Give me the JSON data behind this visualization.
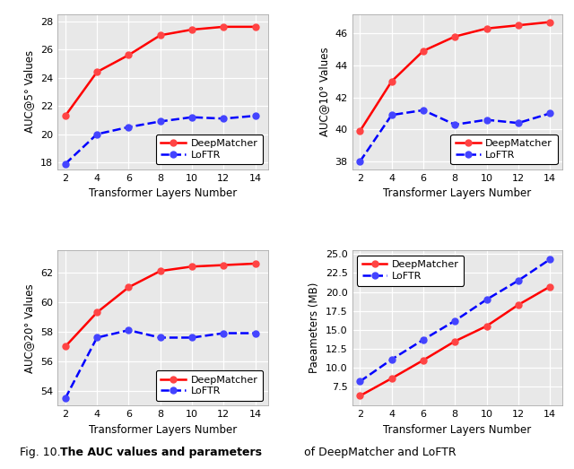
{
  "x": [
    2,
    4,
    6,
    8,
    10,
    12,
    14
  ],
  "auc5_deep": [
    21.3,
    24.4,
    25.6,
    27.0,
    27.4,
    27.6,
    27.6
  ],
  "auc5_loftr": [
    17.9,
    20.0,
    20.5,
    20.9,
    21.2,
    21.1,
    21.3
  ],
  "auc10_deep": [
    39.9,
    43.0,
    44.9,
    45.8,
    46.3,
    46.5,
    46.7
  ],
  "auc10_loftr": [
    38.0,
    40.9,
    41.2,
    40.3,
    40.6,
    40.4,
    41.0
  ],
  "auc20_deep": [
    57.0,
    59.3,
    61.0,
    62.1,
    62.4,
    62.5,
    62.6
  ],
  "auc20_loftr": [
    53.5,
    57.6,
    58.1,
    57.6,
    57.6,
    57.9,
    57.9
  ],
  "params_deep": [
    6.3,
    8.6,
    11.0,
    13.5,
    15.5,
    18.3,
    20.7
  ],
  "params_loftr": [
    8.2,
    11.1,
    13.7,
    16.2,
    19.0,
    21.5,
    24.3
  ],
  "color_deep": "#ff0000",
  "color_loftr": "#0000ff",
  "xlabel": "Transformer Layers Number",
  "ylabel_auc5": "AUC@5° Values",
  "ylabel_auc10": "AUC@10° Values",
  "ylabel_auc20": "AUC@20° Values",
  "ylabel_params": "Paeameters (MB)",
  "label_deep": "DeepMatcher",
  "label_loftr": "LoFTR",
  "ylim_auc5": [
    17.5,
    28.5
  ],
  "ylim_auc10": [
    37.5,
    47.2
  ],
  "ylim_auc20": [
    53.0,
    63.5
  ],
  "ylim_params": [
    5.0,
    25.5
  ],
  "yticks_auc5": [
    18,
    20,
    22,
    24,
    26,
    28
  ],
  "yticks_auc10": [
    38,
    40,
    42,
    44,
    46
  ],
  "yticks_auc20": [
    54,
    56,
    58,
    60,
    62
  ],
  "yticks_params": [
    7.5,
    10.0,
    12.5,
    15.0,
    17.5,
    20.0,
    22.5,
    25.0
  ],
  "bg_color": "#e8e8e8",
  "grid_color": "#ffffff",
  "legend_locs": [
    "lower right",
    "lower right",
    "lower right",
    "upper left"
  ],
  "fig_width": 6.4,
  "fig_height": 5.23,
  "dpi": 100
}
